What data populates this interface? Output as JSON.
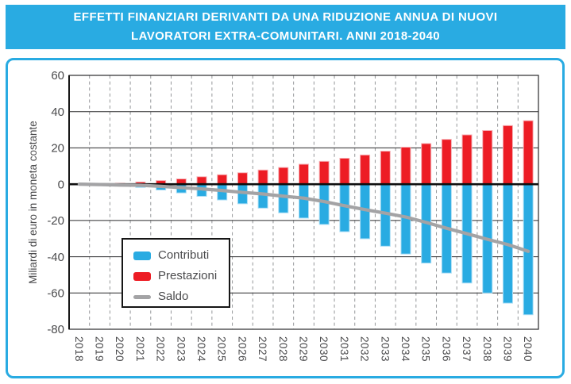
{
  "header": {
    "title_line1": "EFFETTI FINANZIARI DERIVANTI DA UNA RIDUZIONE ANNUA DI NUOVI",
    "title_line2": "LAVORATORI EXTRA-COMUNITARI. ANNI 2018-2040",
    "bg_color": "#29abe2",
    "text_color": "#ffffff"
  },
  "colors": {
    "frame_blue": "#29abe2",
    "axis": "#161616",
    "grid_h": "#2a2a2c",
    "grid_v": "#95979a",
    "zero_line": "#0e0e0e",
    "tick_text": "#4b4b4d",
    "plot_bg": "#ffffff"
  },
  "chart_data": {
    "type": "bar",
    "title": "Effetti finanziari derivanti da una riduzione annua di nuovi lavoratori extra-comunitari. Anni 2018-2040",
    "xlabel": "",
    "ylabel": "Miliardi di euro in moneta costante",
    "ylim": [
      -80,
      60
    ],
    "ytick_step": 20,
    "yticks": [
      60,
      40,
      20,
      0,
      -20,
      -40,
      -60,
      -80
    ],
    "grid": {
      "horizontal": "solid",
      "vertical": "dashed at category boundaries"
    },
    "legend_position": "inside lower-left",
    "categories": [
      "2018",
      "2019",
      "2020",
      "2021",
      "2022",
      "2023",
      "2024",
      "2025",
      "2026",
      "2027",
      "2028",
      "2029",
      "2030",
      "2031",
      "2032",
      "2033",
      "2034",
      "2035",
      "2036",
      "2037",
      "2038",
      "2039",
      "2040"
    ],
    "series": [
      {
        "name": "Contributi",
        "type": "bar",
        "color": "#29abe2",
        "edge": "#a9ddf5",
        "values": [
          0.0,
          -0.3,
          -1.0,
          -1.8,
          -3.2,
          -4.8,
          -6.7,
          -8.7,
          -10.8,
          -13.2,
          -15.8,
          -18.7,
          -22.2,
          -26.2,
          -30.1,
          -34.2,
          -38.5,
          -43.5,
          -49.0,
          -54.5,
          -60.0,
          -65.6,
          -72.0
        ]
      },
      {
        "name": "Prestazioni",
        "type": "bar",
        "color": "#ed1c24",
        "edge": "#f6aeb3",
        "values": [
          0.0,
          0.1,
          0.5,
          1.2,
          2.0,
          2.9,
          4.1,
          5.2,
          6.3,
          7.8,
          9.2,
          11.0,
          12.6,
          14.3,
          16.1,
          18.2,
          20.4,
          22.4,
          24.7,
          27.2,
          29.6,
          32.3,
          35.0
        ]
      },
      {
        "name": "Saldo",
        "type": "line",
        "color": "#a3a3a5",
        "values": [
          0.0,
          -0.2,
          -0.5,
          -0.6,
          -1.2,
          -1.9,
          -2.6,
          -3.5,
          -4.5,
          -5.4,
          -6.6,
          -7.7,
          -9.6,
          -11.9,
          -14.0,
          -16.0,
          -18.1,
          -21.1,
          -24.3,
          -27.3,
          -30.4,
          -33.3,
          -37.0
        ]
      }
    ]
  }
}
